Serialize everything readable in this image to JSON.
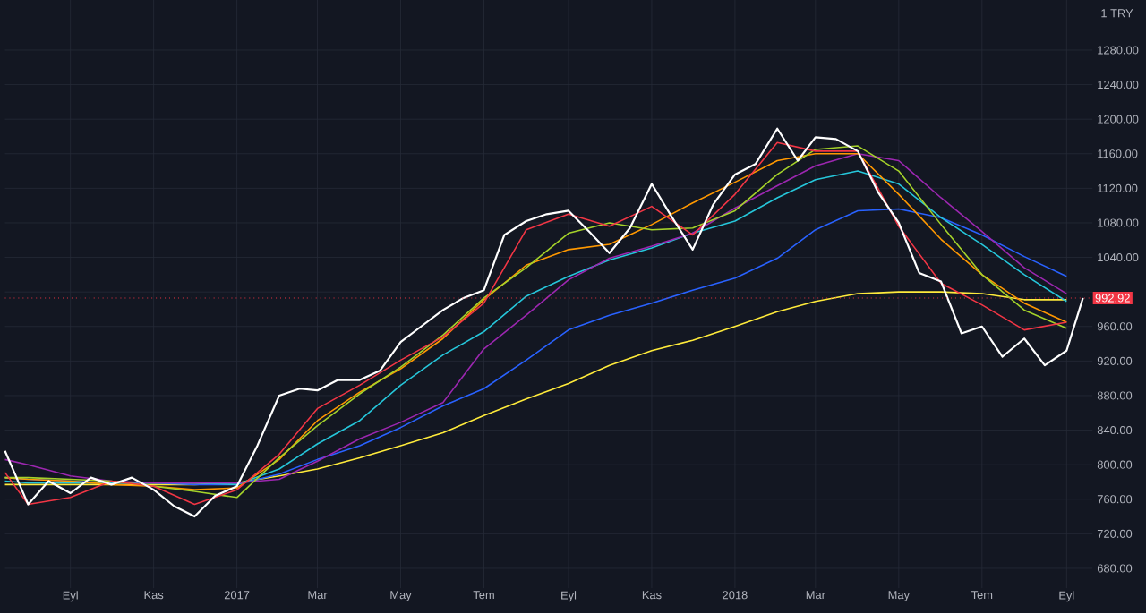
{
  "chart_data": {
    "type": "line",
    "grid": true,
    "marker": "none",
    "line_style": "solid",
    "ylabel": "1 TRY",
    "xlim": [
      "2016-07-15",
      "2018-09-20"
    ],
    "ylim": [
      657,
      1338
    ],
    "xticks": [
      {
        "value": "2016-09-01",
        "label": "Eyl"
      },
      {
        "value": "2016-11-01",
        "label": "Kas"
      },
      {
        "value": "2017-01-01",
        "label": "2017"
      },
      {
        "value": "2017-03-01",
        "label": "Mar"
      },
      {
        "value": "2017-05-01",
        "label": "May"
      },
      {
        "value": "2017-07-01",
        "label": "Tem"
      },
      {
        "value": "2017-09-01",
        "label": "Eyl"
      },
      {
        "value": "2017-11-01",
        "label": "Kas"
      },
      {
        "value": "2018-01-01",
        "label": "2018"
      },
      {
        "value": "2018-03-01",
        "label": "Mar"
      },
      {
        "value": "2018-05-01",
        "label": "May"
      },
      {
        "value": "2018-07-01",
        "label": "Tem"
      },
      {
        "value": "2018-09-01",
        "label": "Eyl"
      }
    ],
    "yticks": [
      {
        "value": 680,
        "label": "680.00"
      },
      {
        "value": 720,
        "label": "720.00"
      },
      {
        "value": 760,
        "label": "760.00"
      },
      {
        "value": 800,
        "label": "800.00"
      },
      {
        "value": 840,
        "label": "840.00"
      },
      {
        "value": 880,
        "label": "880.00"
      },
      {
        "value": 920,
        "label": "920.00"
      },
      {
        "value": 960,
        "label": "960.00"
      },
      {
        "value": 1000,
        "label": null
      },
      {
        "value": 1040,
        "label": "1040.00"
      },
      {
        "value": 1080,
        "label": "1080.00"
      },
      {
        "value": 1120,
        "label": "1120.00"
      },
      {
        "value": 1160,
        "label": "1160.00"
      },
      {
        "value": 1200,
        "label": "1200.00"
      },
      {
        "value": 1240,
        "label": "1240.00"
      },
      {
        "value": 1280,
        "label": "1280.00"
      }
    ],
    "ref_lines": [
      {
        "axis": "y",
        "value": 992.92,
        "label": "992.92",
        "color": "#f23645",
        "line_style": "dotted"
      }
    ],
    "series": [
      {
        "color": "#ffeb3b",
        "x": [
          "2016-07-15",
          "2016-08-01",
          "2016-09-01",
          "2016-10-01",
          "2016-11-01",
          "2016-12-01",
          "2017-01-01",
          "2017-02-01",
          "2017-03-01",
          "2017-04-01",
          "2017-05-01",
          "2017-06-01",
          "2017-07-01",
          "2017-08-01",
          "2017-09-01",
          "2017-10-01",
          "2017-11-01",
          "2017-12-01",
          "2018-01-01",
          "2018-02-01",
          "2018-03-01",
          "2018-04-01",
          "2018-05-01",
          "2018-06-01",
          "2018-07-01",
          "2018-08-01",
          "2018-09-01"
        ],
        "values": [
          777,
          777,
          777,
          777,
          777,
          777,
          779,
          787,
          795,
          808,
          822,
          837,
          857,
          876,
          894,
          915,
          932,
          944,
          960,
          977,
          989,
          998,
          1000,
          1000,
          998,
          991,
          991
        ]
      },
      {
        "color": "#2962ff",
        "x": [
          "2016-07-15",
          "2016-08-01",
          "2016-09-01",
          "2016-10-01",
          "2016-11-01",
          "2016-12-01",
          "2017-01-01",
          "2017-02-01",
          "2017-03-01",
          "2017-04-01",
          "2017-05-01",
          "2017-06-01",
          "2017-07-01",
          "2017-08-01",
          "2017-09-01",
          "2017-10-01",
          "2017-11-01",
          "2017-12-01",
          "2018-01-01",
          "2018-02-01",
          "2018-03-01",
          "2018-04-01",
          "2018-05-01",
          "2018-06-01",
          "2018-07-01",
          "2018-08-01",
          "2018-09-01"
        ],
        "values": [
          785,
          783,
          781,
          779,
          779,
          777,
          777,
          789,
          806,
          822,
          843,
          868,
          888,
          921,
          956,
          973,
          987,
          1002,
          1016,
          1039,
          1072,
          1094,
          1096,
          1086,
          1066,
          1041,
          1018
        ]
      },
      {
        "color": "#26c6da",
        "x": [
          "2016-07-15",
          "2016-08-01",
          "2016-09-01",
          "2016-10-01",
          "2016-11-01",
          "2016-12-01",
          "2017-01-01",
          "2017-02-01",
          "2017-03-01",
          "2017-04-01",
          "2017-05-01",
          "2017-06-01",
          "2017-07-01",
          "2017-08-01",
          "2017-09-01",
          "2017-10-01",
          "2017-11-01",
          "2017-12-01",
          "2018-01-01",
          "2018-02-01",
          "2018-03-01",
          "2018-04-01",
          "2018-05-01",
          "2018-06-01",
          "2018-07-01",
          "2018-08-01",
          "2018-09-01"
        ],
        "values": [
          781,
          779,
          779,
          779,
          779,
          779,
          777,
          795,
          824,
          851,
          892,
          927,
          954,
          995,
          1018,
          1037,
          1051,
          1068,
          1082,
          1109,
          1130,
          1140,
          1125,
          1086,
          1055,
          1020,
          989
        ]
      },
      {
        "color": "#9c27b0",
        "x": [
          "2016-07-15",
          "2016-08-01",
          "2016-09-01",
          "2016-10-01",
          "2016-11-01",
          "2016-12-01",
          "2017-01-01",
          "2017-02-01",
          "2017-03-01",
          "2017-04-01",
          "2017-05-01",
          "2017-06-01",
          "2017-07-01",
          "2017-08-01",
          "2017-09-01",
          "2017-10-01",
          "2017-11-01",
          "2017-12-01",
          "2018-01-01",
          "2018-02-01",
          "2018-03-01",
          "2018-04-01",
          "2018-05-01",
          "2018-06-01",
          "2018-07-01",
          "2018-08-01",
          "2018-09-01"
        ],
        "values": [
          806,
          800,
          787,
          781,
          779,
          779,
          779,
          783,
          804,
          830,
          849,
          872,
          934,
          973,
          1014,
          1039,
          1053,
          1068,
          1097,
          1123,
          1146,
          1160,
          1152,
          1109,
          1070,
          1028,
          998
        ]
      },
      {
        "color": "#ff9800",
        "x": [
          "2016-07-15",
          "2016-08-01",
          "2016-09-01",
          "2016-10-01",
          "2016-11-01",
          "2016-12-01",
          "2017-01-01",
          "2017-02-01",
          "2017-03-01",
          "2017-04-01",
          "2017-05-01",
          "2017-06-01",
          "2017-07-01",
          "2017-08-01",
          "2017-09-01",
          "2017-10-01",
          "2017-11-01",
          "2017-12-01",
          "2018-01-01",
          "2018-02-01",
          "2018-03-01",
          "2018-04-01",
          "2018-05-01",
          "2018-06-01",
          "2018-07-01",
          "2018-08-01",
          "2018-09-01"
        ],
        "values": [
          785,
          783,
          781,
          777,
          775,
          771,
          773,
          806,
          851,
          884,
          911,
          946,
          991,
          1031,
          1049,
          1055,
          1078,
          1103,
          1127,
          1152,
          1160,
          1160,
          1113,
          1061,
          1020,
          987,
          965
        ]
      },
      {
        "color": "#a5d22a",
        "x": [
          "2016-07-15",
          "2016-08-01",
          "2016-09-01",
          "2016-10-01",
          "2016-11-01",
          "2016-12-01",
          "2017-01-01",
          "2017-02-01",
          "2017-03-01",
          "2017-04-01",
          "2017-05-01",
          "2017-06-01",
          "2017-07-01",
          "2017-08-01",
          "2017-09-01",
          "2017-10-01",
          "2017-11-01",
          "2017-12-01",
          "2018-01-01",
          "2018-02-01",
          "2018-03-01",
          "2018-04-01",
          "2018-05-01",
          "2018-06-01",
          "2018-07-01",
          "2018-08-01",
          "2018-09-01"
        ],
        "values": [
          785,
          785,
          783,
          781,
          775,
          769,
          762,
          808,
          845,
          882,
          913,
          950,
          993,
          1028,
          1068,
          1080,
          1072,
          1074,
          1094,
          1136,
          1165,
          1169,
          1140,
          1078,
          1020,
          979,
          958
        ]
      },
      {
        "color": "#f23645",
        "x": [
          "2016-07-15",
          "2016-08-01",
          "2016-09-01",
          "2016-10-01",
          "2016-11-01",
          "2016-12-01",
          "2017-01-01",
          "2017-02-01",
          "2017-03-01",
          "2017-04-01",
          "2017-05-01",
          "2017-06-01",
          "2017-07-01",
          "2017-08-01",
          "2017-09-01",
          "2017-10-01",
          "2017-11-01",
          "2017-12-01",
          "2018-01-01",
          "2018-02-01",
          "2018-03-01",
          "2018-04-01",
          "2018-05-01",
          "2018-06-01",
          "2018-07-01",
          "2018-08-01",
          "2018-09-01"
        ],
        "values": [
          791,
          754,
          762,
          781,
          775,
          754,
          771,
          812,
          865,
          892,
          921,
          948,
          987,
          1072,
          1090,
          1076,
          1099,
          1066,
          1113,
          1173,
          1163,
          1163,
          1076,
          1010,
          985,
          956,
          965
        ]
      },
      {
        "color": "#ffffff",
        "x": [
          "2016-07-15",
          "2016-08-01",
          "2016-08-16",
          "2016-09-01",
          "2016-09-16",
          "2016-10-01",
          "2016-10-16",
          "2016-11-01",
          "2016-11-16",
          "2016-12-01",
          "2016-12-16",
          "2017-01-01",
          "2017-01-16",
          "2017-02-01",
          "2017-02-16",
          "2017-03-01",
          "2017-03-16",
          "2017-04-01",
          "2017-04-16",
          "2017-05-01",
          "2017-05-16",
          "2017-06-01",
          "2017-06-16",
          "2017-07-01",
          "2017-07-16",
          "2017-08-01",
          "2017-08-16",
          "2017-09-01",
          "2017-09-16",
          "2017-10-01",
          "2017-10-16",
          "2017-11-01",
          "2017-11-16",
          "2017-12-01",
          "2017-12-16",
          "2018-01-01",
          "2018-01-16",
          "2018-02-01",
          "2018-02-16",
          "2018-03-01",
          "2018-03-16",
          "2018-04-01",
          "2018-04-16",
          "2018-05-01",
          "2018-05-16",
          "2018-06-01",
          "2018-06-16",
          "2018-07-01",
          "2018-07-16",
          "2018-08-01",
          "2018-08-16",
          "2018-09-01",
          "2018-09-13"
        ],
        "values": [
          816,
          754,
          781,
          767,
          785,
          777,
          785,
          771,
          752,
          740,
          764,
          775,
          822,
          880,
          888,
          886,
          898,
          898,
          909,
          942,
          960,
          979,
          993,
          1002,
          1066,
          1082,
          1090,
          1094,
          1070,
          1045,
          1074,
          1125,
          1086,
          1049,
          1101,
          1136,
          1148,
          1189,
          1152,
          1179,
          1177,
          1163,
          1115,
          1080,
          1022,
          1012,
          952,
          960,
          925,
          946,
          915,
          932,
          993
        ]
      }
    ]
  }
}
